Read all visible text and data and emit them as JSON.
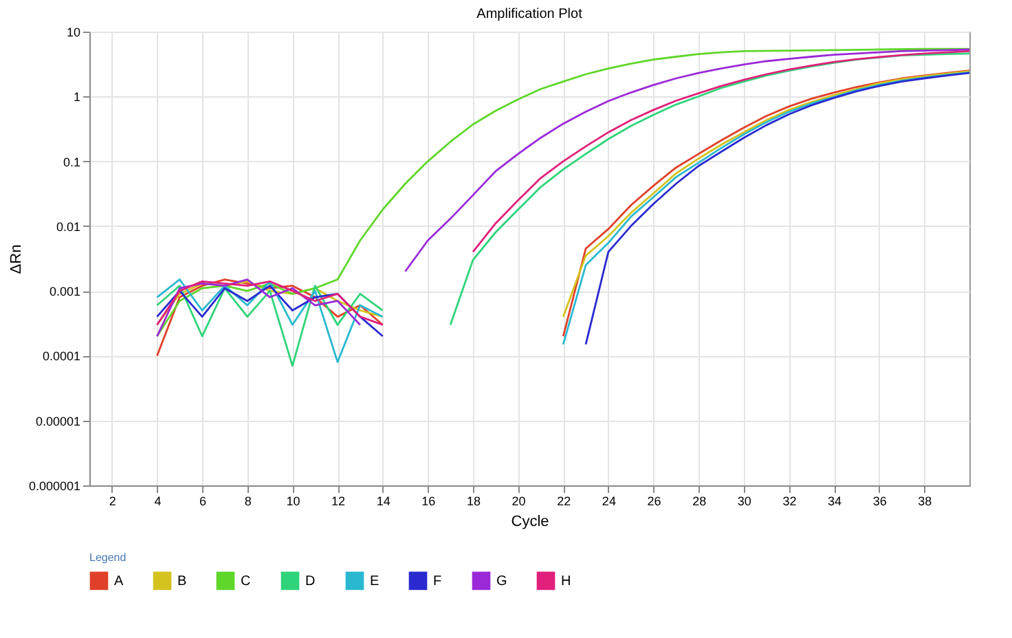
{
  "chart_data": {
    "type": "line",
    "title": "Amplification Plot",
    "xlabel": "Cycle",
    "ylabel": "ΔRn",
    "legend_title": "Legend",
    "xlim": [
      1,
      40
    ],
    "xticks": [
      2,
      4,
      6,
      8,
      10,
      12,
      14,
      16,
      18,
      20,
      22,
      24,
      26,
      28,
      30,
      32,
      34,
      36,
      38
    ],
    "ylim": [
      1e-06,
      10
    ],
    "yticks": [
      {
        "value": 1e-06,
        "label": "0.000001"
      },
      {
        "value": 1e-05,
        "label": "0.00001"
      },
      0.0001,
      0.001,
      0.01,
      0.1,
      1,
      10
    ],
    "log": "y",
    "grid": true,
    "legend": "bottom",
    "line_style": "solid",
    "series": [
      {
        "name": "A",
        "color": "#e0402a",
        "x": [
          4,
          5,
          6,
          7,
          8,
          9,
          10,
          11,
          12,
          13,
          14,
          15,
          22,
          23,
          24,
          25,
          26,
          27,
          28,
          29,
          30,
          31,
          32,
          33,
          34,
          35,
          36,
          37,
          38,
          39,
          40
        ],
        "values": [
          0.0001,
          0.0008,
          0.0012,
          0.0015,
          0.0013,
          0.0011,
          0.0012,
          0.0008,
          0.0004,
          0.0006,
          0.0003,
          null,
          0.0002,
          0.0045,
          0.009,
          0.021,
          0.042,
          0.08,
          0.13,
          0.21,
          0.33,
          0.5,
          0.7,
          0.92,
          1.15,
          1.4,
          1.65,
          1.9,
          2.1,
          2.3,
          2.5
        ]
      },
      {
        "name": "B",
        "color": "#d4c21e",
        "x": [
          4,
          5,
          6,
          7,
          8,
          9,
          10,
          11,
          12,
          13,
          14,
          15,
          22,
          23,
          24,
          25,
          26,
          27,
          28,
          29,
          30,
          31,
          32,
          33,
          34,
          35,
          36,
          37,
          38,
          39,
          40
        ],
        "values": [
          0.0003,
          0.0009,
          0.0013,
          0.0012,
          0.0014,
          0.001,
          0.0009,
          0.0011,
          0.0007,
          0.0005,
          0.0004,
          null,
          0.0004,
          0.0035,
          0.007,
          0.016,
          0.032,
          0.065,
          0.11,
          0.18,
          0.28,
          0.43,
          0.62,
          0.82,
          1.05,
          1.3,
          1.6,
          1.85,
          2.05,
          2.25,
          2.45
        ]
      },
      {
        "name": "C",
        "color": "#5fd62a",
        "x": [
          4,
          5,
          6,
          7,
          8,
          9,
          10,
          11,
          12,
          13,
          14,
          15,
          16,
          17,
          18,
          19,
          20,
          21,
          22,
          23,
          24,
          25,
          26,
          27,
          28,
          29,
          30,
          32,
          34,
          36,
          38,
          40
        ],
        "values": [
          0.0002,
          0.0007,
          0.0011,
          0.0012,
          0.001,
          0.0013,
          0.0009,
          0.0011,
          0.0015,
          0.006,
          0.018,
          0.045,
          0.1,
          0.2,
          0.37,
          0.6,
          0.9,
          1.3,
          1.7,
          2.2,
          2.7,
          3.2,
          3.7,
          4.1,
          4.5,
          4.8,
          5.0,
          5.1,
          5.2,
          5.3,
          5.4,
          5.4
        ]
      },
      {
        "name": "D",
        "color": "#2fd47a",
        "x": [
          4,
          5,
          6,
          7,
          8,
          9,
          10,
          11,
          12,
          13,
          14,
          15,
          17,
          18,
          19,
          20,
          21,
          22,
          23,
          24,
          25,
          26,
          27,
          28,
          29,
          30,
          31,
          32,
          33,
          34,
          35,
          36,
          37,
          38,
          39,
          40
        ],
        "values": [
          0.0006,
          0.0012,
          0.0002,
          0.0011,
          0.0004,
          0.001,
          7e-05,
          0.0012,
          0.0003,
          0.0009,
          0.0005,
          null,
          0.0003,
          0.003,
          0.008,
          0.018,
          0.04,
          0.075,
          0.13,
          0.22,
          0.35,
          0.52,
          0.75,
          1.0,
          1.35,
          1.7,
          2.1,
          2.5,
          2.9,
          3.3,
          3.7,
          4.0,
          4.3,
          4.4,
          4.5,
          4.6
        ]
      },
      {
        "name": "E",
        "color": "#2ab8d0",
        "x": [
          4,
          5,
          6,
          7,
          8,
          9,
          10,
          11,
          12,
          13,
          14,
          15,
          22,
          23,
          24,
          25,
          26,
          27,
          28,
          29,
          30,
          31,
          32,
          33,
          34,
          35,
          36,
          37,
          38,
          39,
          40
        ],
        "values": [
          0.0008,
          0.0015,
          0.0005,
          0.0012,
          0.0006,
          0.0014,
          0.0003,
          0.001,
          8e-05,
          0.0006,
          0.0004,
          null,
          0.00015,
          0.0025,
          0.0055,
          0.014,
          0.028,
          0.057,
          0.095,
          0.16,
          0.26,
          0.4,
          0.58,
          0.78,
          0.98,
          1.25,
          1.5,
          1.75,
          1.95,
          2.15,
          2.35
        ]
      },
      {
        "name": "F",
        "color": "#2a2ad0",
        "x": [
          4,
          5,
          6,
          7,
          8,
          9,
          10,
          11,
          12,
          13,
          14,
          15,
          23,
          24,
          25,
          26,
          27,
          28,
          29,
          30,
          31,
          32,
          33,
          34,
          35,
          36,
          37,
          38,
          39,
          40
        ],
        "values": [
          0.0004,
          0.001,
          0.0004,
          0.0011,
          0.0007,
          0.0012,
          0.0005,
          0.0008,
          0.0009,
          0.0004,
          0.0002,
          null,
          0.00015,
          0.004,
          0.01,
          0.022,
          0.045,
          0.085,
          0.14,
          0.23,
          0.36,
          0.53,
          0.73,
          0.95,
          1.2,
          1.45,
          1.7,
          1.9,
          2.1,
          2.3
        ]
      },
      {
        "name": "G",
        "color": "#9a2ad8",
        "x": [
          4,
          5,
          6,
          7,
          8,
          9,
          10,
          11,
          12,
          13,
          14,
          15,
          16,
          17,
          18,
          19,
          20,
          21,
          22,
          23,
          24,
          25,
          26,
          27,
          28,
          29,
          30,
          31,
          32,
          33,
          34,
          35,
          36,
          37,
          38,
          39,
          40
        ],
        "values": [
          0.0002,
          0.0011,
          0.0013,
          0.0012,
          0.0015,
          0.0008,
          0.0011,
          0.0006,
          0.0007,
          0.0003,
          null,
          0.002,
          0.006,
          0.013,
          0.03,
          0.07,
          0.13,
          0.23,
          0.38,
          0.58,
          0.85,
          1.15,
          1.5,
          1.9,
          2.3,
          2.7,
          3.1,
          3.5,
          3.8,
          4.1,
          4.4,
          4.6,
          4.8,
          5.0,
          5.1,
          5.2,
          5.3
        ]
      },
      {
        "name": "H",
        "color": "#e0207a",
        "x": [
          4,
          5,
          6,
          7,
          8,
          9,
          10,
          11,
          12,
          13,
          14,
          15,
          18,
          19,
          20,
          21,
          22,
          23,
          24,
          25,
          26,
          27,
          28,
          29,
          30,
          31,
          32,
          33,
          34,
          35,
          36,
          37,
          38,
          39,
          40
        ],
        "values": [
          0.0003,
          0.001,
          0.0014,
          0.0013,
          0.0012,
          0.0014,
          0.001,
          0.0007,
          0.0009,
          0.0004,
          0.0003,
          null,
          0.004,
          0.011,
          0.025,
          0.055,
          0.1,
          0.17,
          0.28,
          0.43,
          0.62,
          0.86,
          1.12,
          1.45,
          1.8,
          2.2,
          2.6,
          3.0,
          3.4,
          3.75,
          4.05,
          4.35,
          4.6,
          4.8,
          5.0
        ]
      }
    ]
  }
}
